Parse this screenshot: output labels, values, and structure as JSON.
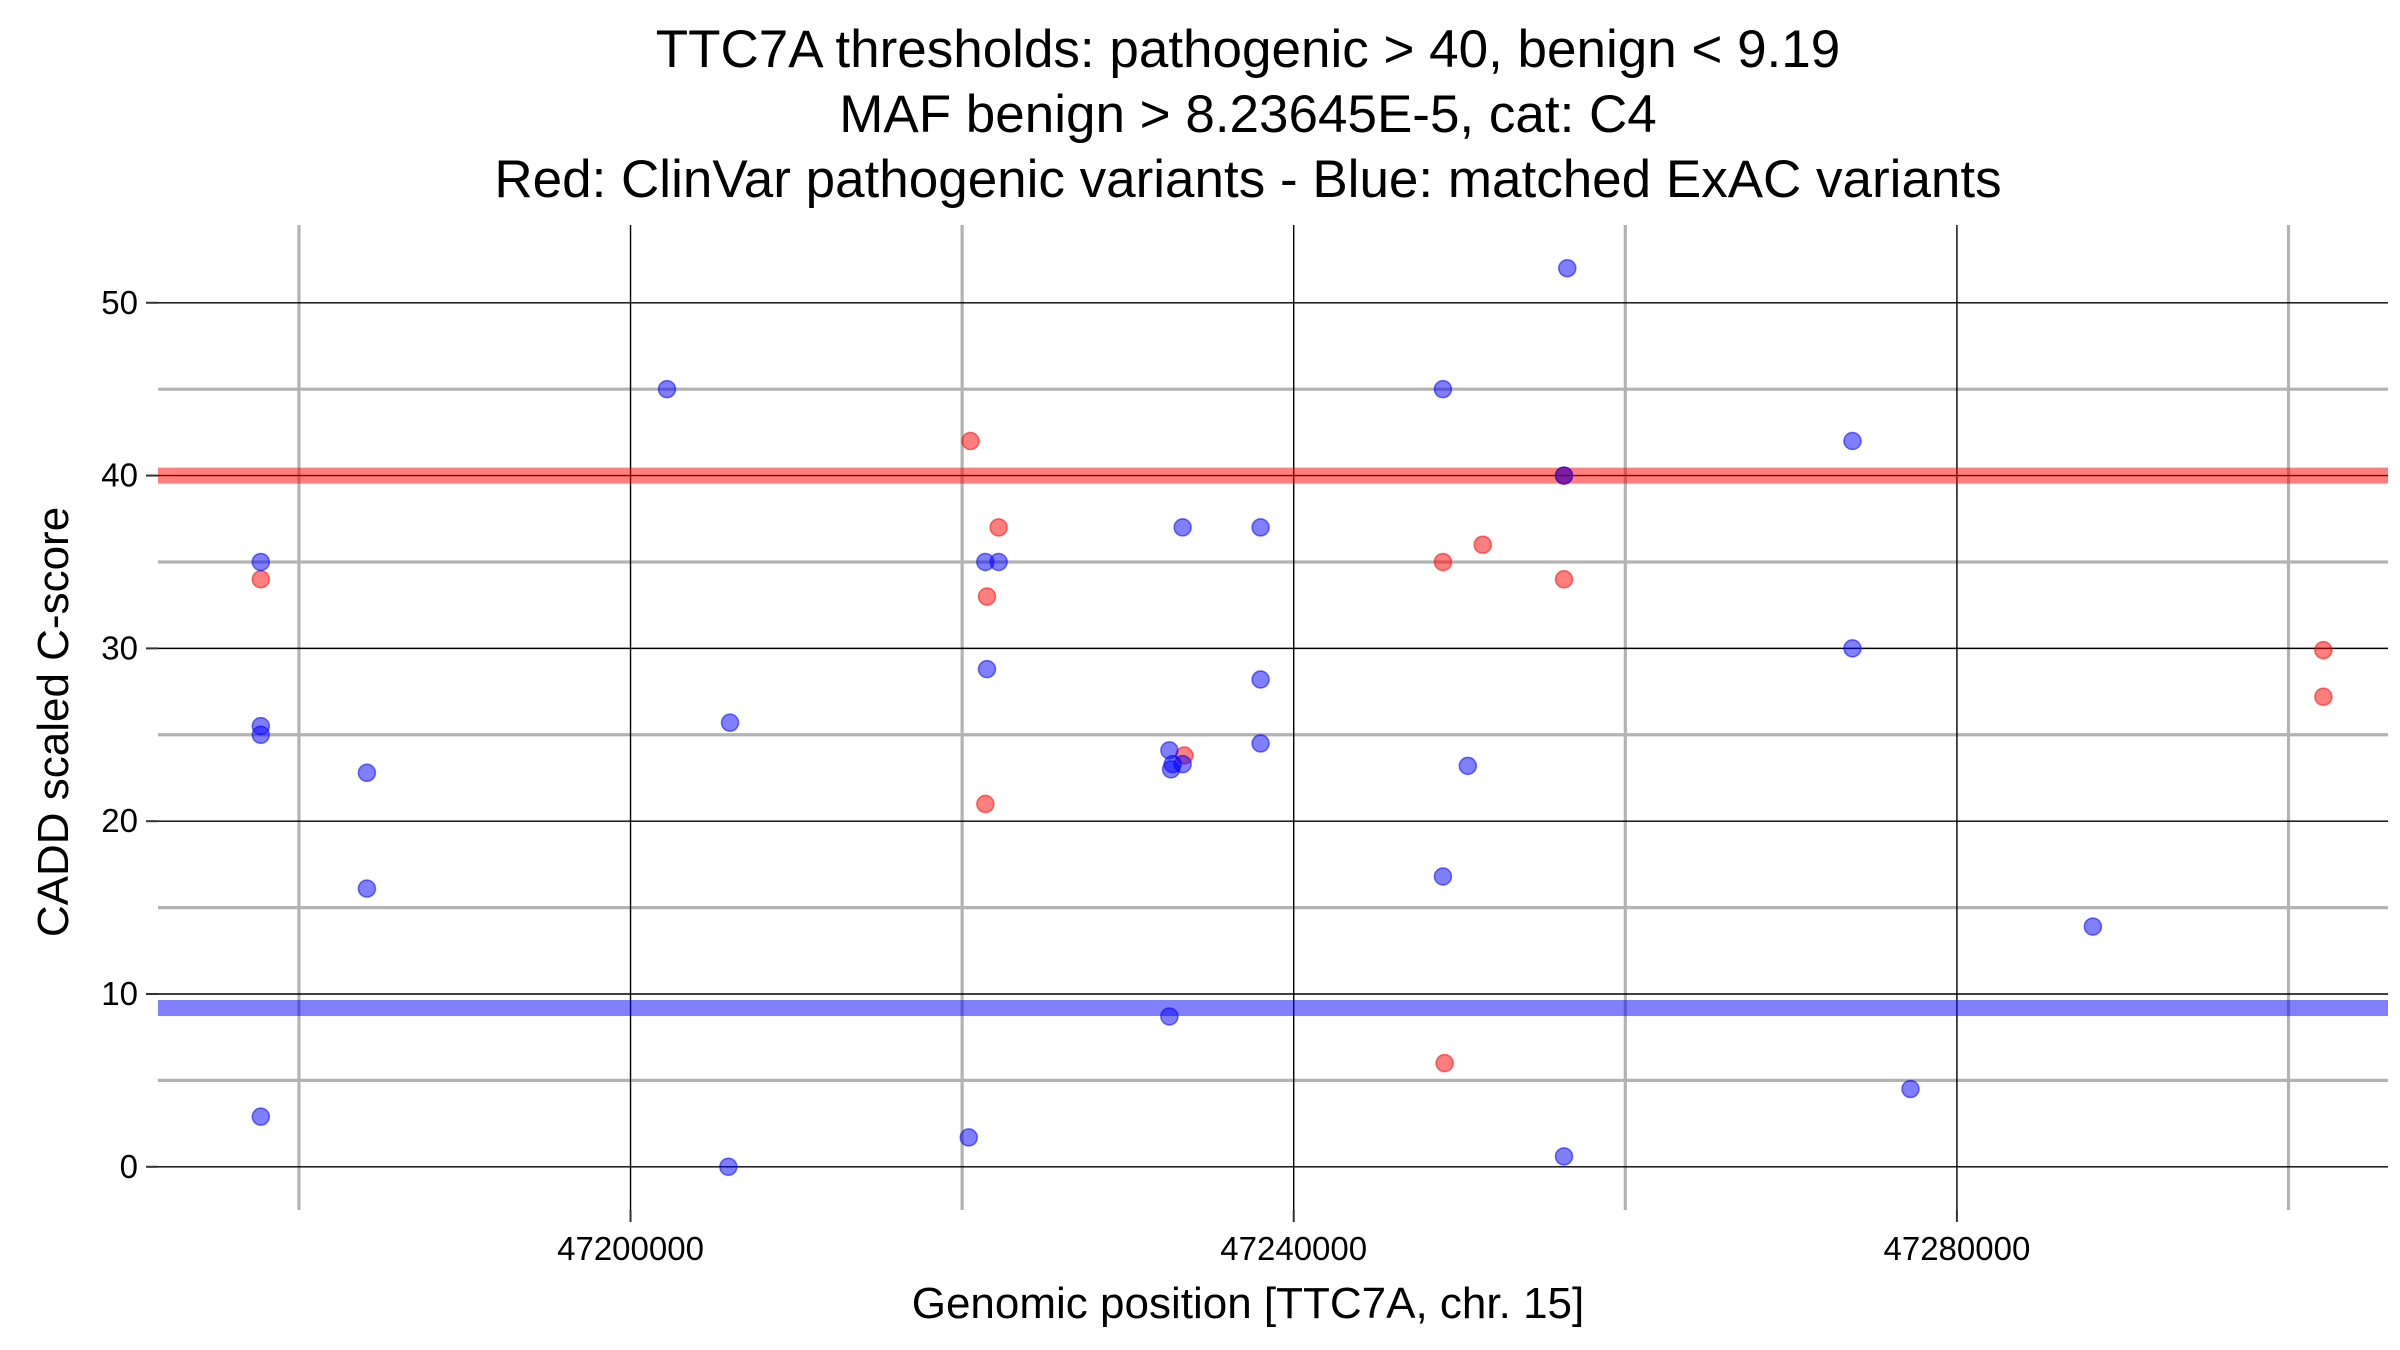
{
  "chart_data": {
    "type": "scatter",
    "title_lines": [
      "TTC7A thresholds: pathogenic > 40, benign < 9.19",
      "MAF benign > 8.23645E-5, cat: C4",
      "Red: ClinVar pathogenic variants - Blue: matched ExAC variants"
    ],
    "xlabel": "Genomic position [TTC7A, chr. 15]",
    "ylabel": "CADD scaled C-score",
    "xlim": [
      47171500,
      47306000
    ],
    "ylim": [
      -2.5,
      54.5
    ],
    "x_ticks": [
      47200000,
      47240000,
      47280000
    ],
    "x_tick_labels": [
      "47200000",
      "47240000",
      "47280000"
    ],
    "x_minor_gridlines": [
      47180000,
      47220000,
      47260000,
      47300000
    ],
    "y_ticks": [
      0,
      10,
      20,
      30,
      40,
      50
    ],
    "y_tick_labels": [
      "0",
      "10",
      "20",
      "30",
      "40",
      "50"
    ],
    "y_minor_gridlines": [
      5,
      15,
      25,
      35,
      45
    ],
    "thresholds": [
      {
        "name": "pathogenic",
        "value": 40,
        "color": "#ff0000"
      },
      {
        "name": "benign",
        "value": 9.19,
        "color": "#0000ff"
      }
    ],
    "series": [
      {
        "name": "ClinVar pathogenic variants",
        "color": "#ff0000",
        "points": [
          {
            "x": 47177700,
            "y": 34
          },
          {
            "x": 47220500,
            "y": 42
          },
          {
            "x": 47221500,
            "y": 33
          },
          {
            "x": 47222200,
            "y": 37
          },
          {
            "x": 47221400,
            "y": 21
          },
          {
            "x": 47233400,
            "y": 23.8
          },
          {
            "x": 47249000,
            "y": 35
          },
          {
            "x": 47251400,
            "y": 36
          },
          {
            "x": 47256300,
            "y": 34
          },
          {
            "x": 47256300,
            "y": 40
          },
          {
            "x": 47249100,
            "y": 6
          },
          {
            "x": 47302100,
            "y": 29.9
          },
          {
            "x": 47302100,
            "y": 27.2
          }
        ]
      },
      {
        "name": "matched ExAC variants",
        "color": "#0000ff",
        "points": [
          {
            "x": 47177700,
            "y": 35
          },
          {
            "x": 47177700,
            "y": 25.5
          },
          {
            "x": 47177700,
            "y": 25
          },
          {
            "x": 47177700,
            "y": 2.9
          },
          {
            "x": 47184100,
            "y": 22.8
          },
          {
            "x": 47184100,
            "y": 16.1
          },
          {
            "x": 47202200,
            "y": 45
          },
          {
            "x": 47206000,
            "y": 25.7
          },
          {
            "x": 47205900,
            "y": 0
          },
          {
            "x": 47220400,
            "y": 1.7
          },
          {
            "x": 47221400,
            "y": 35
          },
          {
            "x": 47222200,
            "y": 35
          },
          {
            "x": 47221500,
            "y": 28.8
          },
          {
            "x": 47233300,
            "y": 37
          },
          {
            "x": 47238000,
            "y": 37
          },
          {
            "x": 47238000,
            "y": 28.2
          },
          {
            "x": 47238000,
            "y": 24.5
          },
          {
            "x": 47232500,
            "y": 24.1
          },
          {
            "x": 47232700,
            "y": 23.3
          },
          {
            "x": 47233300,
            "y": 23.3
          },
          {
            "x": 47232600,
            "y": 23
          },
          {
            "x": 47232500,
            "y": 8.7
          },
          {
            "x": 47249000,
            "y": 45
          },
          {
            "x": 47250500,
            "y": 23.2
          },
          {
            "x": 47249000,
            "y": 16.8
          },
          {
            "x": 47256500,
            "y": 52
          },
          {
            "x": 47256300,
            "y": 40
          },
          {
            "x": 47256300,
            "y": 0.6
          },
          {
            "x": 47273700,
            "y": 42
          },
          {
            "x": 47273700,
            "y": 30
          },
          {
            "x": 47277200,
            "y": 4.5
          },
          {
            "x": 47288200,
            "y": 13.9
          }
        ]
      }
    ]
  }
}
